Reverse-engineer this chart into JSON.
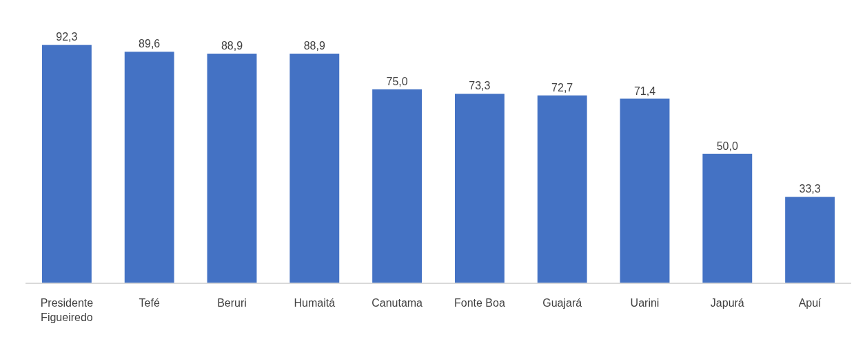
{
  "chart_data": {
    "type": "bar",
    "categories": [
      "Presidente Figueiredo",
      "Tefé",
      "Beruri",
      "Humaitá",
      "Canutama",
      "Fonte Boa",
      "Guajará",
      "Uarini",
      "Japurá",
      "Apuí"
    ],
    "values": [
      92.3,
      89.6,
      88.9,
      88.9,
      75.0,
      73.3,
      72.7,
      71.4,
      50.0,
      33.3
    ],
    "value_labels": [
      "92,3",
      "89,6",
      "88,9",
      "88,9",
      "75,0",
      "73,3",
      "72,7",
      "71,4",
      "50,0",
      "33,3"
    ],
    "color": "#4472c4",
    "tick_labels": "x"
  }
}
